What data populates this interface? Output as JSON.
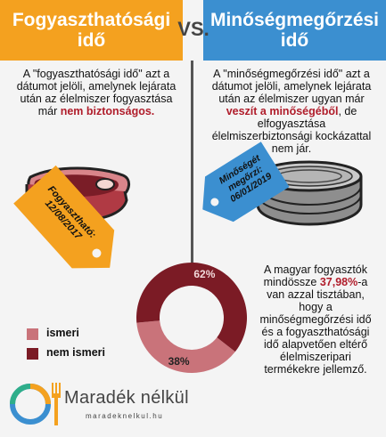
{
  "header": {
    "left_title": "Fogyaszthatósági idő",
    "vs": "VS.",
    "right_title": "Minőségmegőrzési idő"
  },
  "left": {
    "desc_before": "A \"fogyaszthatósági idő\" azt a dátumot jelöli, amelynek lejárata után az élelmiszer fogyasztása már ",
    "desc_highlight": "nem biztonságos.",
    "tag_label": "Fogyasztható:",
    "tag_date": "12/08/2017"
  },
  "right": {
    "desc_before": "A \"minőségmegőrzési idő\" azt a dátumot jelöli, amelynek lejárata után az élelmiszer ugyan már ",
    "desc_highlight": "veszít a minőségéből",
    "desc_after": ", de elfogyasztása élelmiszerbiztonsági kockázattal nem jár.",
    "tag_label": "Minőségét megőrzi:",
    "tag_date": "06/01/2019"
  },
  "survey": {
    "text_before": "A magyar fogyasztók mindössze ",
    "percent": "37,98%",
    "text_after": "-a van azzal tisztában, hogy a minőségmegőrzési idő és a fogyaszthatósági idő alapvetően eltérő élelmiszeripari termékekre jellemző."
  },
  "legend": {
    "ismeri": "ismeri",
    "nem_ismeri": "nem ismeri"
  },
  "chart_data": {
    "type": "pie",
    "categories": [
      "ismeri",
      "nem ismeri"
    ],
    "values": [
      38,
      62
    ],
    "labels": [
      "38%",
      "62%"
    ],
    "colors": [
      "#c9737a",
      "#7b1b25"
    ]
  },
  "logo": {
    "name": "Maradék nélkül",
    "url": "maradeknelkul.hu"
  },
  "colors": {
    "orange": "#f4a11f",
    "blue": "#3b8fd0",
    "red": "#b01d2b",
    "pink": "#c9737a",
    "maroon": "#7b1b25"
  }
}
